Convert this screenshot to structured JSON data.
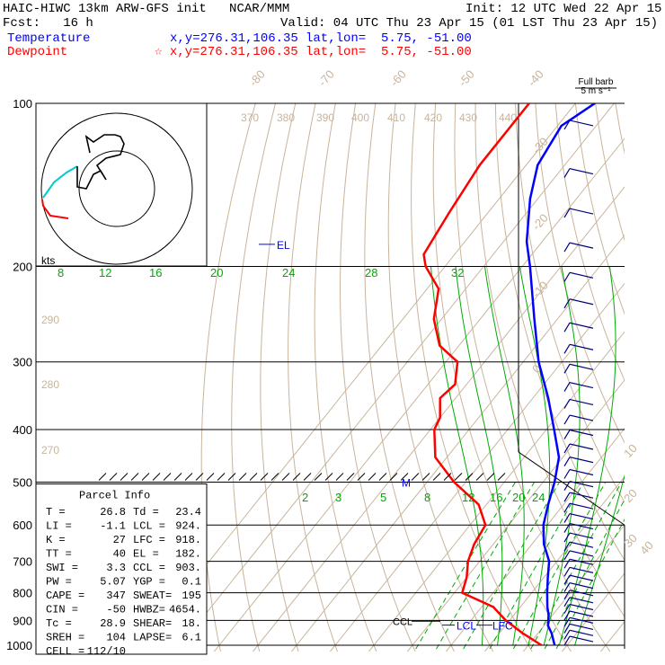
{
  "header": {
    "line1_left": "HAIC-HIWC 13km ARW-GFS init   NCAR/MMM",
    "line1_right": "Init: 12 UTC Wed 22 Apr 15",
    "line2_left": "Fcst:   16 h",
    "line2_right": "Valid: 04 UTC Thu 23 Apr 15 (01 LST Thu 23 Apr 15)",
    "temp_label": "Temperature",
    "temp_xy": "x,y=276.31,106.35",
    "temp_latlon": "lat,lon=  5.75, -51.00",
    "dew_label": "Dewpoint",
    "dew_xy": "☆ x,y=276.31,106.35",
    "dew_latlon": "lat,lon=  5.75, -51.00",
    "barb_title": "Full barb",
    "barb_units": "5 m s⁻¹"
  },
  "colors": {
    "temperature": "#0000ff",
    "dewpoint": "#ff0000",
    "isotherm": "#c8b49b",
    "dry_adiabat": "#c8b49b",
    "moist_adiabat": "#00aa00",
    "mixing_ratio": "#00aa00",
    "hodo_low": "#ff0000",
    "hodo_mid": "#00cccc",
    "hodo_high": "#000000",
    "barbs": "#000080"
  },
  "parcel": {
    "title": "Parcel Info",
    "rows": [
      [
        "T   =",
        "26.8",
        "Td =",
        "23.4"
      ],
      [
        "LI  =",
        "-1.1",
        "LCL =",
        "924."
      ],
      [
        "K   =",
        "27",
        "LFC =",
        "918."
      ],
      [
        "TT  =",
        "40",
        "EL  =",
        "182."
      ],
      [
        "SWI =",
        "3.3",
        "CCL =",
        "903."
      ],
      [
        "PW  =",
        "5.07",
        "YGP =",
        "0.1"
      ],
      [
        "CAPE =",
        "347",
        "SWEAT=",
        "195"
      ],
      [
        "CIN =",
        "-50",
        "HWBZ= ",
        "4654."
      ],
      [
        "Tc  =",
        "28.9",
        "SHEAR=",
        "18."
      ],
      [
        "SREH =",
        "104",
        "LAPSE=",
        "6.1"
      ],
      [
        "CELL =",
        "112/10",
        "",
        ""
      ]
    ]
  },
  "markers": {
    "el": "EL",
    "m": "M",
    "ccl": "CCL",
    "lcl": "LCL",
    "lfc": "LFC",
    "kts": "kts"
  },
  "chart_data": {
    "type": "line",
    "title": "",
    "xlabel": "",
    "ylabel": "",
    "y_scale": "log",
    "pressure_levels": [
      100,
      200,
      300,
      400,
      500,
      600,
      700,
      800,
      900,
      1000
    ],
    "isotherm_labels": [
      "-80",
      "-70",
      "-60",
      "-50",
      "-40",
      "-30",
      "-20",
      "-10",
      "0",
      "10",
      "20",
      "30",
      "40"
    ],
    "isotherm_values": [
      -80,
      -70,
      -60,
      -50,
      -40,
      -30,
      -20,
      -10,
      0,
      10,
      20,
      30,
      40
    ],
    "theta_labels": [
      "370",
      "380",
      "390",
      "400",
      "410",
      "420",
      "430",
      "440"
    ],
    "theta_labels_left": [
      "290",
      "280",
      "270"
    ],
    "moist_labels_upper": [
      "8",
      "12",
      "16",
      "20",
      "24",
      "28",
      "32"
    ],
    "mixing_labels_lower": [
      "2",
      "3",
      "5",
      "8",
      "12",
      "16",
      "20",
      "24"
    ],
    "series": [
      {
        "name": "Temperature",
        "p": [
          100,
          110,
          130,
          150,
          180,
          200,
          250,
          300,
          350,
          400,
          450,
          500,
          550,
          600,
          650,
          700,
          750,
          800,
          850,
          880,
          900,
          920,
          950,
          1000
        ],
        "t": [
          -75,
          -79,
          -77,
          -72,
          -64,
          -58,
          -46,
          -36,
          -26,
          -18,
          -11,
          -7,
          -4,
          -1,
          3,
          8,
          11,
          14,
          17,
          19,
          20,
          21,
          23.5,
          26.8
        ]
      },
      {
        "name": "Dewpoint",
        "p": [
          100,
          130,
          160,
          190,
          200,
          220,
          250,
          280,
          300,
          330,
          350,
          380,
          400,
          450,
          500,
          550,
          600,
          650,
          700,
          750,
          800,
          850,
          900,
          950,
          1000
        ],
        "td": [
          -92,
          -92,
          -90,
          -88,
          -85,
          -77,
          -72,
          -65,
          -57,
          -53,
          -54,
          -50,
          -49,
          -43,
          -33,
          -22,
          -16,
          -15,
          -13,
          -10,
          -8,
          3,
          9,
          16,
          23.4
        ]
      }
    ],
    "hodograph_rings_kts": [
      12,
      24
    ],
    "hodograph_label": "kts"
  }
}
